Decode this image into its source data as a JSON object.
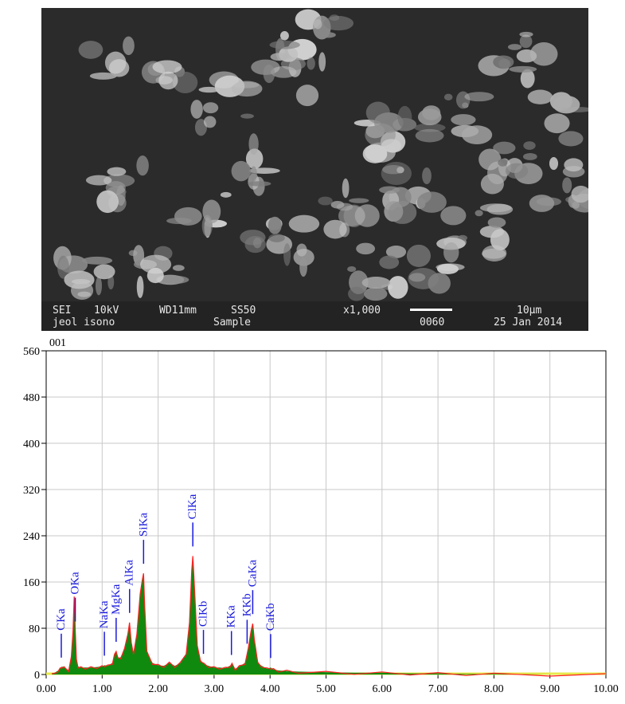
{
  "micrograph": {
    "line1": {
      "mode": "SEI",
      "voltage": "10kV",
      "working_distance": "WD11mm",
      "spot_size": "SS50",
      "magnification": "x1,000",
      "scale": "10µm"
    },
    "line2": {
      "operator": "jeol isono",
      "sample": "Sample",
      "image_number": "0060",
      "date": "25 Jan 2014"
    }
  },
  "chart_data": {
    "type": "line",
    "title": "001",
    "xlabel": "",
    "ylabel": "",
    "xlim": [
      0,
      10
    ],
    "ylim": [
      0,
      560
    ],
    "x_ticks": [
      0,
      1,
      2,
      3,
      4,
      5,
      6,
      7,
      8,
      9,
      10
    ],
    "x_tick_labels": [
      "0.00",
      "1.00",
      "2.00",
      "3.00",
      "4.00",
      "5.00",
      "6.00",
      "7.00",
      "8.00",
      "9.00",
      "10.00"
    ],
    "y_ticks": [
      0,
      80,
      160,
      240,
      320,
      400,
      480,
      560
    ],
    "y_tick_labels": [
      "0",
      "80",
      "160",
      "240",
      "320",
      "400",
      "480",
      "560"
    ],
    "grid": true,
    "colors": {
      "spectrum": "#ff2020",
      "fit_fill": "#0f8a0f",
      "baseline": "#e8e84a",
      "labels": "#1a1adc"
    },
    "series": [
      {
        "x": [
          0.1,
          0.2,
          0.25,
          0.28,
          0.32,
          0.4,
          0.45,
          0.48,
          0.5,
          0.52,
          0.54,
          0.57,
          0.62,
          0.7,
          0.8,
          0.9,
          1.0,
          1.04,
          1.1,
          1.18,
          1.22,
          1.25,
          1.28,
          1.33,
          1.4,
          1.46,
          1.49,
          1.52,
          1.56,
          1.62,
          1.68,
          1.72,
          1.74,
          1.76,
          1.8,
          1.9,
          2.0,
          2.1,
          2.2,
          2.3,
          2.4,
          2.5,
          2.56,
          2.6,
          2.62,
          2.65,
          2.7,
          2.76,
          2.82,
          2.9,
          3.0,
          3.1,
          3.2,
          3.28,
          3.32,
          3.38,
          3.45,
          3.55,
          3.61,
          3.66,
          3.69,
          3.72,
          3.78,
          3.85,
          3.95,
          4.01,
          4.06,
          4.15,
          4.3,
          4.5,
          5.0,
          5.5,
          6.0,
          6.5,
          7.0,
          7.5,
          8.0,
          9.0,
          10.0
        ],
        "values": [
          0,
          6,
          10,
          14,
          12,
          8,
          30,
          75,
          135,
          75,
          25,
          14,
          12,
          12,
          12,
          13,
          14,
          16,
          15,
          20,
          35,
          40,
          28,
          30,
          45,
          70,
          90,
          55,
          35,
          70,
          140,
          165,
          175,
          120,
          40,
          20,
          16,
          15,
          20,
          15,
          20,
          35,
          90,
          180,
          205,
          150,
          50,
          25,
          18,
          15,
          12,
          12,
          11,
          15,
          18,
          10,
          14,
          20,
          45,
          75,
          88,
          60,
          20,
          15,
          10,
          12,
          9,
          7,
          6,
          5,
          4,
          3,
          3,
          2,
          2,
          1,
          1,
          0,
          0
        ]
      }
    ],
    "peak_labels": [
      {
        "label": "CKa",
        "x": 0.27
      },
      {
        "label": "OKa",
        "x": 0.52
      },
      {
        "label": "NaKa",
        "x": 1.04
      },
      {
        "label": "MgKa",
        "x": 1.25
      },
      {
        "label": "AlKa",
        "x": 1.49
      },
      {
        "label": "SiKa",
        "x": 1.74
      },
      {
        "label": "ClKa",
        "x": 2.62
      },
      {
        "label": "ClKb",
        "x": 2.81
      },
      {
        "label": "KKa",
        "x": 3.31
      },
      {
        "label": "KKb",
        "x": 3.59
      },
      {
        "label": "CaKa",
        "x": 3.69
      },
      {
        "label": "CaKb",
        "x": 4.01
      }
    ]
  }
}
